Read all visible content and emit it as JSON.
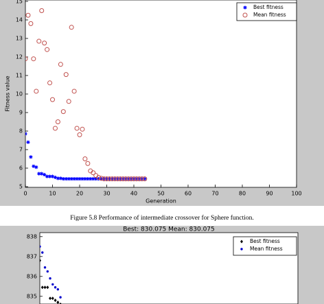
{
  "chart_data": [
    {
      "type": "scatter",
      "ylabel": "Fitness value",
      "xlabel": "Generation",
      "x": [
        0,
        1,
        2,
        3,
        4,
        5,
        6,
        7,
        8,
        9,
        10,
        11,
        12,
        13,
        14,
        15,
        16,
        17,
        18,
        19,
        20,
        21,
        22,
        23,
        24,
        25,
        26,
        27,
        28,
        29,
        30,
        31,
        32,
        33,
        34,
        35,
        36,
        37,
        38,
        39,
        40,
        41,
        42,
        43,
        44
      ],
      "series": [
        {
          "name": "Best fitness",
          "color": "#0000ff",
          "marker": "*",
          "values": [
            7.85,
            7.4,
            6.6,
            6.1,
            6.05,
            5.7,
            5.7,
            5.65,
            5.55,
            5.55,
            5.55,
            5.5,
            5.45,
            5.45,
            5.42,
            5.42,
            5.42,
            5.42,
            5.42,
            5.42,
            5.42,
            5.42,
            5.42,
            5.42,
            5.42,
            5.42,
            5.42,
            5.42,
            5.42,
            5.42,
            5.42,
            5.42,
            5.42,
            5.42,
            5.42,
            5.42,
            5.42,
            5.42,
            5.42,
            5.42,
            5.42,
            5.42,
            5.42,
            5.42,
            5.42
          ]
        },
        {
          "name": "Mean fitness",
          "color": "#c0504d",
          "marker": "o",
          "values": [
            11.9,
            14.25,
            13.8,
            11.9,
            10.15,
            12.85,
            14.5,
            12.75,
            12.4,
            10.6,
            9.7,
            8.15,
            8.5,
            11.6,
            9.05,
            11.05,
            9.6,
            13.6,
            10.15,
            8.15,
            7.8,
            8.1,
            6.5,
            6.25,
            5.85,
            5.75,
            5.6,
            5.5,
            5.45,
            5.42,
            5.42,
            5.42,
            5.42,
            5.42,
            5.42,
            5.42,
            5.42,
            5.42,
            5.42,
            5.42,
            5.42,
            5.42,
            5.42,
            5.42,
            5.42
          ]
        }
      ],
      "xlim": [
        0,
        100
      ],
      "xticks": [
        0,
        10,
        20,
        30,
        40,
        50,
        60,
        70,
        80,
        90,
        100
      ],
      "ylim": [
        5,
        15
      ],
      "yticks": [
        5,
        6,
        7,
        8,
        9,
        10,
        11,
        12,
        13,
        14,
        15
      ],
      "legend": "upper right"
    },
    {
      "type": "scatter",
      "title": "Best: 830.075 Mean: 830.075",
      "x": [
        0,
        1,
        2,
        3,
        4,
        5,
        6,
        7,
        8
      ],
      "series": [
        {
          "name": "Best fitness",
          "color": "#000000",
          "marker": "d",
          "values": [
            836.8,
            835.45,
            835.45,
            835.45,
            834.9,
            834.9,
            834.8,
            834.7,
            834.6
          ]
        },
        {
          "name": "Mean fitness",
          "color": "#0000cc",
          "marker": ".",
          "values": [
            837.5,
            837.2,
            836.45,
            836.25,
            835.9,
            835.6,
            835.45,
            835.35,
            834.95
          ]
        }
      ],
      "xlim": [
        0,
        100
      ],
      "ylim": [
        834,
        838.2
      ],
      "yticks": [
        835,
        836,
        837,
        838
      ],
      "legend": "upper right"
    }
  ],
  "caption": "Figure 5.8 Performance of intermediate crossover for Sphere function."
}
